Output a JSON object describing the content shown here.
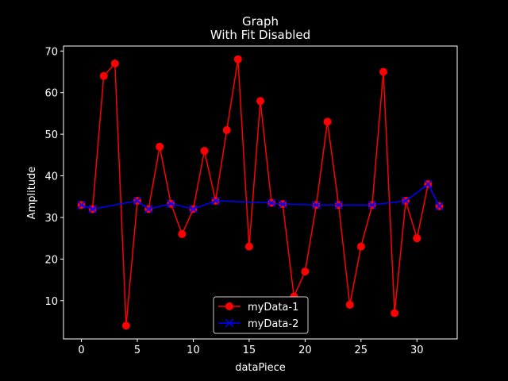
{
  "chart_data": {
    "type": "line",
    "title": "Graph",
    "subtitle": "With Fit Disabled",
    "xlabel": "dataPiece",
    "ylabel": "Amplitude",
    "xlim": [
      -1.6,
      33.6
    ],
    "ylim": [
      0.8,
      71.2
    ],
    "xticks": [
      0,
      5,
      10,
      15,
      20,
      25,
      30
    ],
    "yticks": [
      10,
      20,
      30,
      40,
      50,
      60,
      70
    ],
    "grid": false,
    "legend_position": "lower center",
    "background": "#000000",
    "series": [
      {
        "name": "myData-1",
        "color": "#ff0000",
        "marker": "circle",
        "x": [
          0,
          1,
          2,
          3,
          4,
          5,
          6,
          7,
          8,
          9,
          10,
          11,
          12,
          13,
          14,
          15,
          16,
          17,
          18,
          19,
          20,
          21,
          22,
          23,
          24,
          25,
          26,
          27,
          28,
          29,
          30,
          31,
          32
        ],
        "y": [
          33,
          32,
          64,
          67,
          4,
          34,
          32,
          47,
          33.3,
          26,
          32,
          46,
          34,
          51,
          68,
          23,
          58,
          33.5,
          33.2,
          11,
          17,
          33,
          53,
          33,
          9,
          23,
          33,
          65,
          7,
          34,
          25,
          38,
          32.7
        ]
      },
      {
        "name": "myData-2",
        "color": "#0000ff",
        "marker": "x",
        "x": [
          0,
          1,
          5,
          6,
          8,
          10,
          12,
          17,
          18,
          21,
          23,
          26,
          29,
          31,
          32
        ],
        "y": [
          33,
          32,
          34,
          32,
          33.3,
          32,
          34,
          33.5,
          33.2,
          33,
          33,
          33,
          34,
          38,
          32.7
        ]
      }
    ]
  }
}
